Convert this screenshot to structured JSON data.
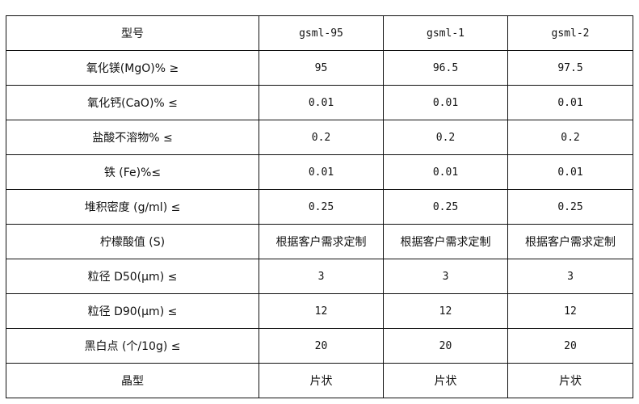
{
  "table": {
    "header": [
      "型号",
      "gsml-95",
      "gsml-1",
      "gsml-2"
    ],
    "rows": [
      [
        "氧化镁(MgO)% ≥",
        "95",
        "96.5",
        "97.5"
      ],
      [
        "氧化钙(CaO)% ≤",
        "0.01",
        "0.01",
        "0.01"
      ],
      [
        "盐酸不溶物% ≤",
        "0.2",
        "0.2",
        "0.2"
      ],
      [
        "铁 (Fe)%≤",
        "0.01",
        "0.01",
        "0.01"
      ],
      [
        "堆积密度 (g/ml) ≤",
        "0.25",
        "0.25",
        "0.25"
      ],
      [
        "柠檬酸值 (S)",
        "根据客户需求定制",
        "根据客户需求定制",
        "根据客户需求定制"
      ],
      [
        "粒径 D50(μm) ≤",
        "3",
        "3",
        "3"
      ],
      [
        "粒径 D90(μm) ≤",
        "12",
        "12",
        "12"
      ],
      [
        "黑白点 (个/10g) ≤",
        "20",
        "20",
        "20"
      ],
      [
        "晶型",
        "片状",
        "片状",
        "片状"
      ]
    ]
  }
}
